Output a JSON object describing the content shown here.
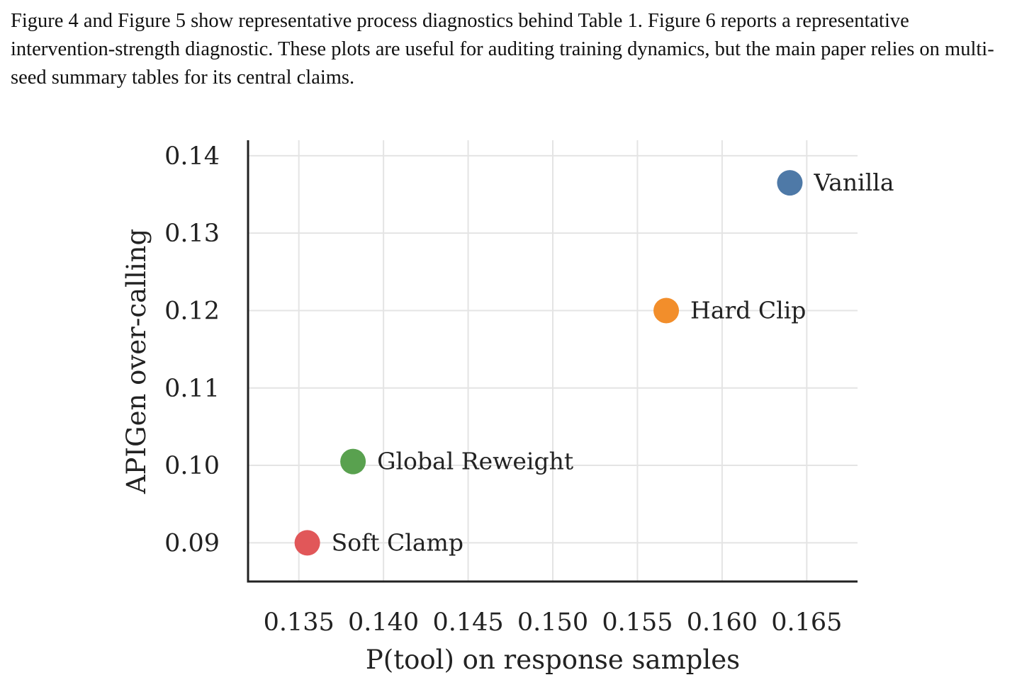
{
  "paper": {
    "paragraph": "Figure 4 and Figure 5 show representative process diagnostics behind Table 1. Figure 6 reports a representative intervention-strength diagnostic. These plots are useful for auditing training dynamics, but the main paper relies on multi-seed summary tables for its central claims."
  },
  "chart_data": {
    "type": "scatter",
    "title": "",
    "xlabel": "P(tool) on response samples",
    "ylabel": "APIGen over-calling",
    "xlim": [
      0.132,
      0.168
    ],
    "ylim": [
      0.085,
      0.142
    ],
    "xticks": [
      0.135,
      0.14,
      0.145,
      0.15,
      0.155,
      0.16,
      0.165
    ],
    "xtick_labels": [
      "0.135",
      "0.140",
      "0.145",
      "0.150",
      "0.155",
      "0.160",
      "0.165"
    ],
    "yticks": [
      0.09,
      0.1,
      0.11,
      0.12,
      0.13,
      0.14
    ],
    "ytick_labels": [
      "0.09",
      "0.10",
      "0.11",
      "0.12",
      "0.13",
      "0.14"
    ],
    "grid": true,
    "legend": "none",
    "points": [
      {
        "label": "Vanilla",
        "x": 0.164,
        "y": 0.1365,
        "color": "#4e79a7"
      },
      {
        "label": "Hard Clip",
        "x": 0.1567,
        "y": 0.12,
        "color": "#f28e2b"
      },
      {
        "label": "Global Reweight",
        "x": 0.1382,
        "y": 0.1005,
        "color": "#59a14f"
      },
      {
        "label": "Soft Clamp",
        "x": 0.1355,
        "y": 0.09,
        "color": "#e15759"
      }
    ]
  }
}
